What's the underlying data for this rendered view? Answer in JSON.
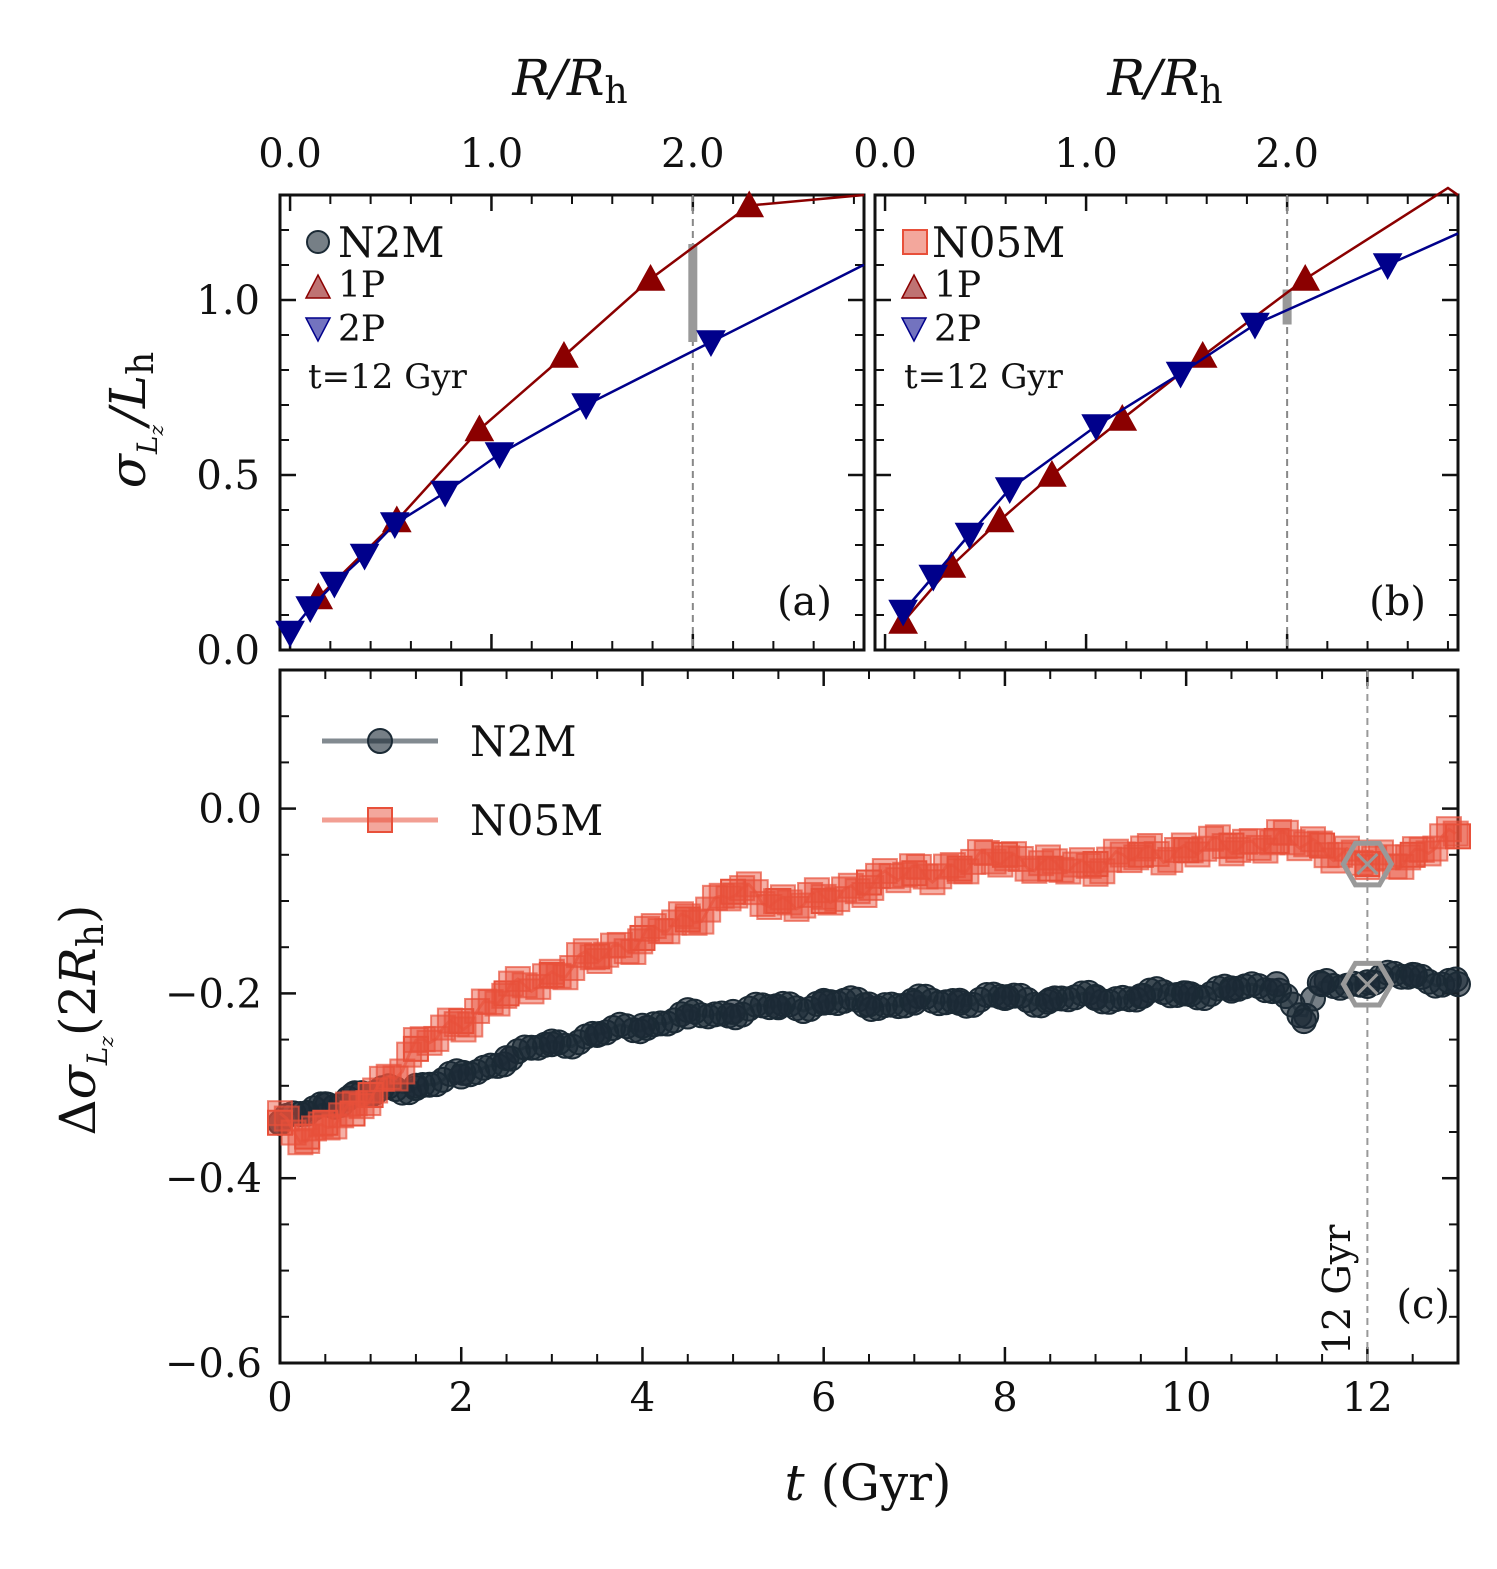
{
  "colors": {
    "n2m": "#1b2a35",
    "n05m": "#e8503a",
    "p1": "#8b0000",
    "p2": "#00008b",
    "annot": "#999999"
  },
  "chart_data": [
    {
      "id": "a",
      "type": "line",
      "panel_label": "(a)",
      "x_top_label": "R/R_h",
      "top_ticks": [
        "0.0",
        "1.0",
        "2.0"
      ],
      "top_tick_values": [
        0.0,
        1.0,
        2.0
      ],
      "xlim": [
        -0.05,
        2.85
      ],
      "ylabel": "σ_Lz/L_h",
      "yticks": [
        "0.0",
        "0.5",
        "1.0"
      ],
      "ytick_values": [
        0.0,
        0.5,
        1.0
      ],
      "ylim": [
        0.0,
        1.3
      ],
      "legend": {
        "model": "N2M",
        "p1": "1P",
        "p2": "2P",
        "time": "t=12 Gyr"
      },
      "vline_x": 2.0,
      "gap_bar": [
        0.88,
        1.16
      ],
      "series": [
        {
          "name": "1P",
          "x": [
            0.14,
            0.53,
            0.94,
            1.36,
            1.79,
            2.28
          ],
          "y": [
            0.15,
            0.37,
            0.63,
            0.84,
            1.06,
            1.27
          ]
        },
        {
          "name": "2P",
          "x": [
            0.0,
            0.1,
            0.22,
            0.37,
            0.52,
            0.77,
            1.04,
            1.47,
            2.09
          ],
          "y": [
            0.05,
            0.12,
            0.19,
            0.27,
            0.36,
            0.45,
            0.56,
            0.7,
            0.88
          ]
        }
      ]
    },
    {
      "id": "b",
      "type": "line",
      "panel_label": "(b)",
      "x_top_label": "R/R_h",
      "top_ticks": [
        "0.0",
        "1.0",
        "2.0"
      ],
      "top_tick_values": [
        0.0,
        1.0,
        2.0
      ],
      "xlim": [
        -0.05,
        2.85
      ],
      "ylabel": "",
      "yticks": [],
      "ytick_values": [
        0.0,
        0.5,
        1.0
      ],
      "ylim": [
        0.0,
        1.3
      ],
      "legend": {
        "model": "N05M",
        "p1": "1P",
        "p2": "2P",
        "time": "t=12 Gyr"
      },
      "vline_x": 2.0,
      "gap_bar": [
        0.93,
        1.03
      ],
      "series": [
        {
          "name": "1P",
          "x": [
            0.09,
            0.33,
            0.57,
            0.83,
            1.18,
            1.58,
            2.09,
            2.8
          ],
          "y": [
            0.08,
            0.24,
            0.37,
            0.5,
            0.66,
            0.84,
            1.06,
            1.32
          ]
        },
        {
          "name": "2P",
          "x": [
            0.09,
            0.24,
            0.42,
            0.62,
            1.05,
            1.47,
            1.84,
            2.5
          ],
          "y": [
            0.11,
            0.21,
            0.33,
            0.46,
            0.64,
            0.79,
            0.93,
            1.1
          ]
        }
      ]
    },
    {
      "id": "c",
      "type": "line",
      "panel_label": "(c)",
      "xlabel": "t (Gyr)",
      "ylabel": "Δσ_Lz(2R_h)",
      "xticks": [
        "0",
        "2",
        "4",
        "6",
        "8",
        "10",
        "12"
      ],
      "xtick_values": [
        0,
        2,
        4,
        6,
        8,
        10,
        12
      ],
      "yticks": [
        "0.0",
        "−0.2",
        "−0.4",
        "−0.6"
      ],
      "ytick_values": [
        0.0,
        -0.2,
        -0.4,
        -0.6
      ],
      "xlim": [
        0,
        13
      ],
      "ylim": [
        -0.6,
        0.15
      ],
      "vline_x": 12,
      "vline_label": "12 Gyr",
      "markers_at_12": [
        -0.06,
        -0.19
      ],
      "series": [
        {
          "name": "N2M",
          "x": [
            0,
            0.3,
            0.5,
            0.8,
            1,
            1.5,
            2,
            2.5,
            3,
            3.5,
            4,
            4.5,
            5,
            5.5,
            6,
            6.5,
            7,
            7.5,
            8,
            8.5,
            9,
            9.5,
            10,
            10.5,
            11,
            11.3,
            11.5,
            12,
            12.5,
            13
          ],
          "y": [
            -0.34,
            -0.33,
            -0.32,
            -0.31,
            -0.31,
            -0.3,
            -0.29,
            -0.27,
            -0.255,
            -0.245,
            -0.235,
            -0.225,
            -0.22,
            -0.215,
            -0.21,
            -0.212,
            -0.21,
            -0.208,
            -0.205,
            -0.207,
            -0.205,
            -0.203,
            -0.2,
            -0.197,
            -0.19,
            -0.23,
            -0.19,
            -0.188,
            -0.18,
            -0.19
          ]
        },
        {
          "name": "N05M",
          "x": [
            0,
            0.3,
            0.5,
            0.8,
            1,
            1.5,
            2,
            2.5,
            3,
            3.5,
            4,
            4.5,
            5,
            5.5,
            6,
            6.5,
            7,
            7.5,
            8,
            8.5,
            9,
            9.5,
            10,
            10.5,
            11,
            11.5,
            12,
            12.5,
            13
          ],
          "y": [
            -0.34,
            -0.355,
            -0.34,
            -0.33,
            -0.31,
            -0.26,
            -0.23,
            -0.2,
            -0.18,
            -0.16,
            -0.14,
            -0.12,
            -0.09,
            -0.1,
            -0.1,
            -0.08,
            -0.07,
            -0.065,
            -0.05,
            -0.065,
            -0.06,
            -0.05,
            -0.045,
            -0.04,
            -0.035,
            -0.04,
            -0.06,
            -0.05,
            -0.03
          ]
        }
      ]
    }
  ]
}
